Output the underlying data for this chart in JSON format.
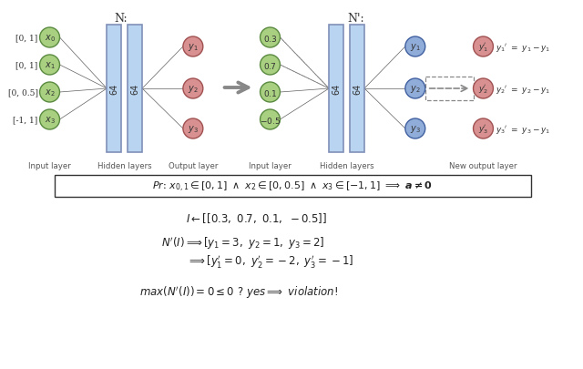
{
  "title_N": "N:",
  "title_Np": "N':",
  "bg_color": "#ffffff",
  "input_ranges": [
    "[0, 1]",
    "[0, 1]",
    "[0, 0.5]",
    "[-1, 1]"
  ],
  "input_nodes_Np": [
    "0.3",
    "0.7",
    "0.1",
    "-0.5"
  ],
  "hidden_label": "64",
  "node_color_green": "#a8d080",
  "node_color_pink": "#d89090",
  "node_color_blue": "#90acd8",
  "hidden_rect_color": "#b8d4f0",
  "hidden_rect_edge": "#8090b8",
  "line_color": "#606060",
  "dashed_line_color": "#909090"
}
